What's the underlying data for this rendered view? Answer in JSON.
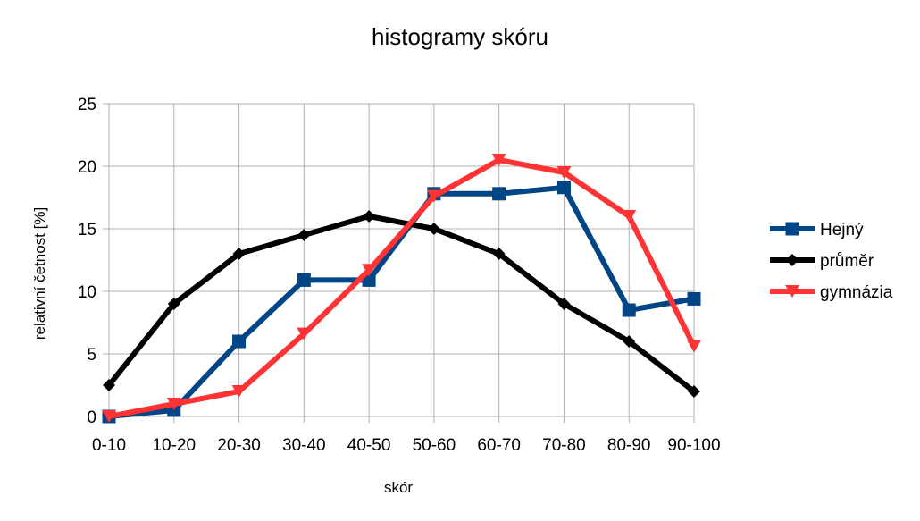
{
  "chart_data": {
    "type": "line",
    "title": "histogramy skóru",
    "xlabel": "skór",
    "ylabel": "relativní četnost [%]",
    "categories": [
      "0-10",
      "10-20",
      "20-30",
      "30-40",
      "40-50",
      "50-60",
      "60-70",
      "70-80",
      "80-90",
      "90-100"
    ],
    "ylim": [
      0,
      25
    ],
    "yticks": [
      0,
      5,
      10,
      15,
      20,
      25
    ],
    "grid": true,
    "legend_position": "right",
    "series": [
      {
        "name": "Hejný",
        "color": "#004586",
        "marker": "square",
        "values": [
          0,
          0.5,
          6,
          10.9,
          10.9,
          17.8,
          17.8,
          18.3,
          8.5,
          9.4
        ]
      },
      {
        "name": "průměr",
        "color": "#000000",
        "marker": "diamond",
        "values": [
          2.5,
          9,
          13,
          14.5,
          16,
          15,
          13,
          9,
          6,
          2
        ]
      },
      {
        "name": "gymnázia",
        "color": "#ff3333",
        "marker": "triangle-down",
        "values": [
          0,
          1,
          2,
          6.6,
          11.7,
          17.6,
          20.5,
          19.5,
          16,
          5.6
        ]
      }
    ]
  }
}
